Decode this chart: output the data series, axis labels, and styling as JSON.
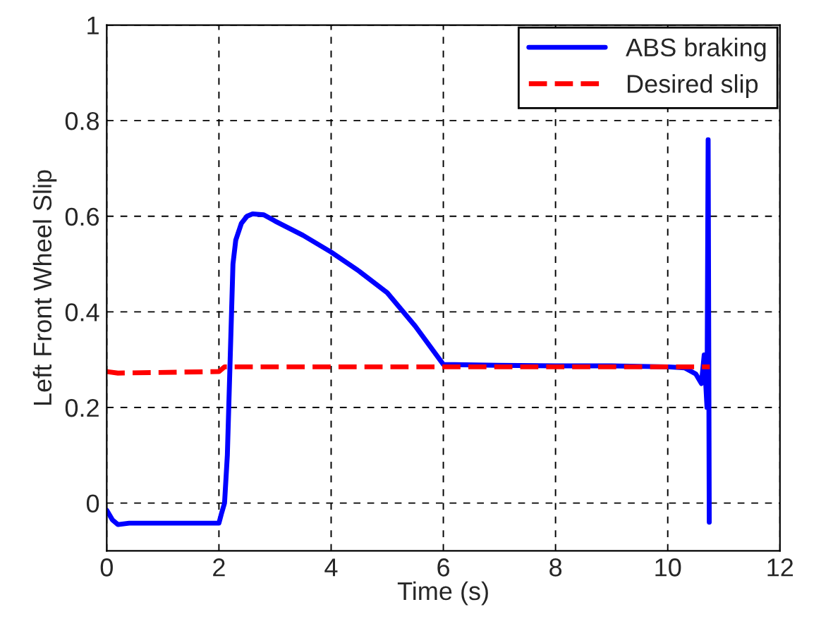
{
  "chart_data": {
    "type": "line",
    "xlabel": "Time (s)",
    "ylabel": "Left Front Wheel Slip",
    "xlim": [
      0,
      12
    ],
    "xticks": [
      0,
      2,
      4,
      6,
      8,
      10,
      12
    ],
    "ylim": [
      -0.1,
      1
    ],
    "yticks": [
      0,
      0.2,
      0.4,
      0.6,
      0.8,
      1
    ],
    "grid": true,
    "legend": "top right",
    "series": [
      {
        "name": "ABS braking",
        "color": "#0000ff",
        "line_style": "solid",
        "x": [
          0,
          0.1,
          0.2,
          0.4,
          1,
          2,
          2.05,
          2.1,
          2.15,
          2.2,
          2.25,
          2.3,
          2.4,
          2.5,
          2.6,
          2.8,
          3,
          3.5,
          4,
          4.5,
          5,
          5.5,
          6,
          7,
          8,
          9,
          10,
          10.3,
          10.5,
          10.6,
          10.65,
          10.7,
          10.72,
          10.74
        ],
        "values": [
          -0.015,
          -0.035,
          -0.045,
          -0.042,
          -0.042,
          -0.042,
          -0.02,
          0.0,
          0.1,
          0.3,
          0.5,
          0.55,
          0.585,
          0.6,
          0.605,
          0.603,
          0.59,
          0.56,
          0.525,
          0.485,
          0.44,
          0.37,
          0.29,
          0.288,
          0.287,
          0.287,
          0.285,
          0.283,
          0.27,
          0.25,
          0.31,
          0.2,
          0.76,
          -0.04
        ]
      },
      {
        "name": "Desired slip",
        "color": "#ff0000",
        "line_style": "dashed",
        "x": [
          0,
          0.2,
          2,
          2.1,
          10.75
        ],
        "values": [
          0.275,
          0.272,
          0.275,
          0.285,
          0.285
        ]
      }
    ]
  }
}
